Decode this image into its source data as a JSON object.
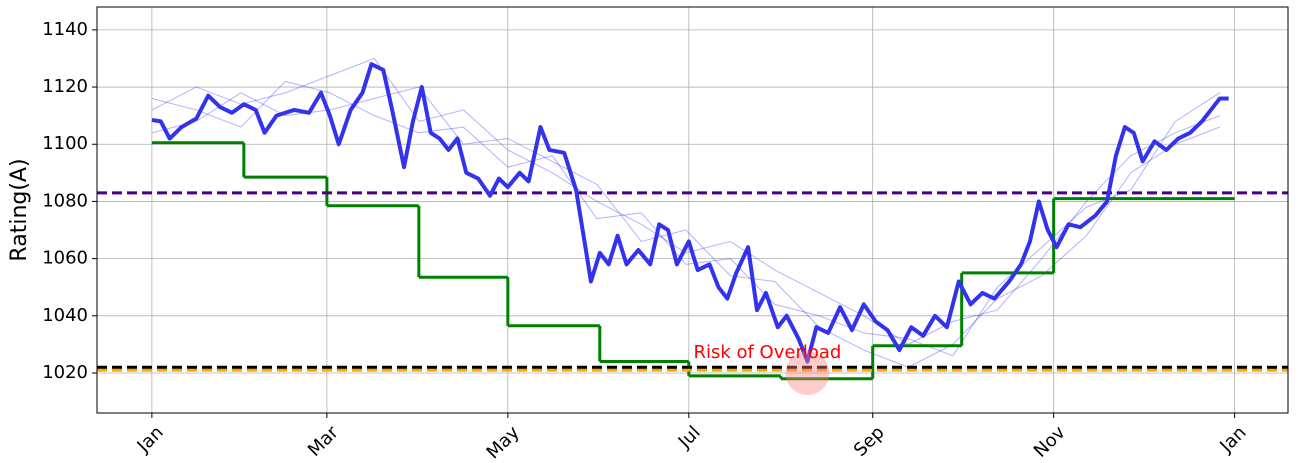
{
  "chart_data": {
    "type": "line",
    "ylabel": "Rating(A)",
    "xlim": [
      -18.5,
      383
    ],
    "xticks": [
      {
        "value": 0,
        "label": "Jan"
      },
      {
        "value": 59,
        "label": "Mar"
      },
      {
        "value": 120,
        "label": "May"
      },
      {
        "value": 181,
        "label": "Jul"
      },
      {
        "value": 243,
        "label": "Sep"
      },
      {
        "value": 304,
        "label": "Nov"
      },
      {
        "value": 365,
        "label": "Jan"
      }
    ],
    "ylim": [
      1006,
      1148
    ],
    "yticks": [
      1020,
      1040,
      1060,
      1080,
      1100,
      1120,
      1140
    ],
    "grid": true,
    "series": [
      {
        "color": "#0000ff",
        "width": 1,
        "opacity": 0.3,
        "x": [
          0,
          15,
          30,
          45,
          60,
          75,
          90,
          105,
          120,
          135,
          150,
          165,
          180,
          195,
          210,
          225,
          240,
          255,
          270,
          285,
          300,
          315,
          330,
          345,
          360
        ],
        "values": [
          1112,
          1120,
          1114,
          1118,
          1124,
          1130,
          1108,
          1112,
          1098,
          1090,
          1080,
          1072,
          1062,
          1066,
          1056,
          1048,
          1040,
          1030,
          1038,
          1042,
          1060,
          1080,
          1096,
          1104,
          1110
        ]
      },
      {
        "color": "#0000ff",
        "width": 1,
        "opacity": 0.3,
        "x": [
          0,
          15,
          30,
          45,
          60,
          75,
          90,
          105,
          120,
          135,
          150,
          165,
          180,
          195,
          210,
          225,
          240,
          255,
          270,
          285,
          300,
          315,
          330,
          345,
          360
        ],
        "values": [
          1104,
          1108,
          1118,
          1110,
          1112,
          1116,
          1120,
          1100,
          1102,
          1094,
          1086,
          1066,
          1070,
          1054,
          1052,
          1036,
          1028,
          1022,
          1030,
          1046,
          1054,
          1068,
          1090,
          1100,
          1106
        ]
      },
      {
        "color": "#0000ff",
        "width": 1,
        "opacity": 0.3,
        "x": [
          0,
          15,
          30,
          45,
          60,
          75,
          90,
          105,
          120,
          135,
          150,
          165,
          180,
          195,
          210,
          225,
          240,
          255,
          270,
          285,
          300,
          315,
          330,
          345,
          360
        ],
        "values": [
          1116,
          1112,
          1106,
          1122,
          1118,
          1110,
          1104,
          1106,
          1092,
          1096,
          1074,
          1076,
          1058,
          1060,
          1044,
          1040,
          1034,
          1032,
          1026,
          1050,
          1064,
          1078,
          1084,
          1108,
          1118
        ]
      },
      {
        "color": "#008000",
        "width": 3,
        "opacity": 1,
        "step": "post",
        "x": [
          0,
          31,
          59,
          90,
          120,
          151,
          181,
          212,
          243,
          273,
          304,
          365
        ],
        "values": [
          1100.5,
          1088.5,
          1078.5,
          1053.5,
          1036.5,
          1024,
          1019,
          1018,
          1029.5,
          1055,
          1081,
          1081
        ]
      },
      {
        "color": "#3333ee",
        "width": 4,
        "opacity": 1,
        "x": [
          0,
          3,
          6,
          10,
          15,
          19,
          23,
          27,
          31,
          35,
          38,
          42,
          48,
          53,
          57,
          60,
          63,
          67,
          71,
          74,
          78,
          81,
          85,
          88,
          91,
          94,
          97,
          100,
          103,
          106,
          110,
          114,
          117,
          120,
          124,
          127,
          131,
          134,
          139,
          143,
          146,
          148,
          151,
          154,
          157,
          160,
          164,
          168,
          171,
          174,
          177,
          181,
          184,
          188,
          191,
          194,
          197,
          201,
          204,
          207,
          211,
          214,
          218,
          221,
          224,
          228,
          232,
          236,
          240,
          244,
          248,
          252,
          256,
          260,
          264,
          268,
          272,
          276,
          280,
          284,
          289,
          293,
          296,
          299,
          302,
          305,
          309,
          313,
          318,
          322,
          325,
          328,
          331,
          334,
          338,
          342,
          346,
          350,
          354,
          357,
          360,
          363
        ],
        "values": [
          1108.5,
          1108,
          1102,
          1106,
          1109,
          1117,
          1113,
          1111,
          1114,
          1112,
          1104,
          1110,
          1112,
          1111,
          1118,
          1110,
          1100,
          1112,
          1118,
          1128,
          1126,
          1112,
          1092,
          1108,
          1120,
          1104,
          1102,
          1098,
          1102,
          1090,
          1088,
          1082,
          1088,
          1085,
          1090,
          1087,
          1106,
          1098,
          1097,
          1084,
          1065,
          1052,
          1062,
          1058,
          1068,
          1058,
          1063,
          1058,
          1072,
          1070,
          1058,
          1066,
          1056,
          1058,
          1050,
          1046,
          1055,
          1064,
          1042,
          1048,
          1036,
          1040,
          1032,
          1024,
          1036,
          1034,
          1043,
          1035,
          1044,
          1038,
          1035,
          1028,
          1036,
          1033,
          1040,
          1036,
          1052,
          1044,
          1048,
          1046,
          1052,
          1058,
          1066,
          1080,
          1070,
          1064,
          1072,
          1071,
          1075,
          1080,
          1096,
          1106,
          1104,
          1094,
          1101,
          1098,
          1102,
          1104,
          1108,
          1112,
          1116,
          1116
        ]
      }
    ],
    "hlines": [
      {
        "value": 1083,
        "color": "#4b0082"
      },
      {
        "value": 1021,
        "color": "#ffa500"
      },
      {
        "value": 1022,
        "color": "#000000"
      }
    ],
    "highlight": {
      "x": 221,
      "y": 1020,
      "color": "#ff8080"
    },
    "annotation": {
      "text": "Risk of Overload",
      "x": 207.5,
      "y": 1027,
      "color": "#ff0000"
    }
  }
}
